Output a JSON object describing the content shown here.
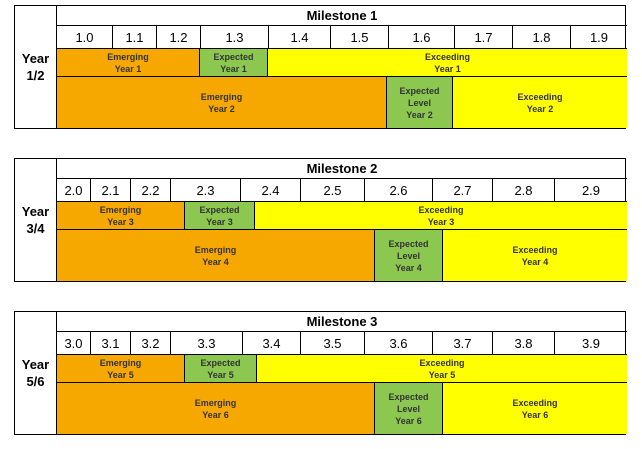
{
  "colors": {
    "emerging": "#f6a800",
    "expected": "#8cc850",
    "exceeding": "#ffff00"
  },
  "milestones": [
    {
      "title": "Milestone 1",
      "year_line1": "Year",
      "year_line2": "1/2",
      "scale": [
        "1.0",
        "1.1",
        "1.2",
        "1.3",
        "1.4",
        "1.5",
        "1.6",
        "1.7",
        "1.8",
        "1.9"
      ],
      "row1": {
        "emerging": [
          "Emerging",
          "Year 1"
        ],
        "expected": [
          "Expected",
          "Year 1"
        ],
        "exceeding": [
          "Exceeding",
          "Year 1"
        ]
      },
      "row2": {
        "emerging": [
          "Emerging",
          "Year 2"
        ],
        "expected": [
          "Expected",
          "Level",
          "Year 2"
        ],
        "exceeding": [
          "Exceeding",
          "Year 2"
        ]
      }
    },
    {
      "title": "Milestone 2",
      "year_line1": "Year",
      "year_line2": "3/4",
      "scale": [
        "2.0",
        "2.1",
        "2.2",
        "2.3",
        "2.4",
        "2.5",
        "2.6",
        "2.7",
        "2.8",
        "2.9"
      ],
      "row1": {
        "emerging": [
          "Emerging",
          "Year 3"
        ],
        "expected": [
          "Expected",
          "Year 3"
        ],
        "exceeding": [
          "Exceeding",
          "Year 3"
        ]
      },
      "row2": {
        "emerging": [
          "Emerging",
          "Year 4"
        ],
        "expected": [
          "Expected",
          "Level",
          "Year 4"
        ],
        "exceeding": [
          "Exceeding",
          "Year 4"
        ]
      }
    },
    {
      "title": "Milestone 3",
      "year_line1": "Year",
      "year_line2": "5/6",
      "scale": [
        "3.0",
        "3.1",
        "3.2",
        "3.3",
        "3.4",
        "3.5",
        "3.6",
        "3.7",
        "3.8",
        "3.9"
      ],
      "row1": {
        "emerging": [
          "Emerging",
          "Year 5"
        ],
        "expected": [
          "Expected",
          "Year 5"
        ],
        "exceeding": [
          "Exceeding",
          "Year 5"
        ]
      },
      "row2": {
        "emerging": [
          "Emerging",
          "Year 6"
        ],
        "expected": [
          "Expected",
          "Level",
          "Year 6"
        ],
        "exceeding": [
          "Exceeding",
          "Year 6"
        ]
      }
    }
  ]
}
